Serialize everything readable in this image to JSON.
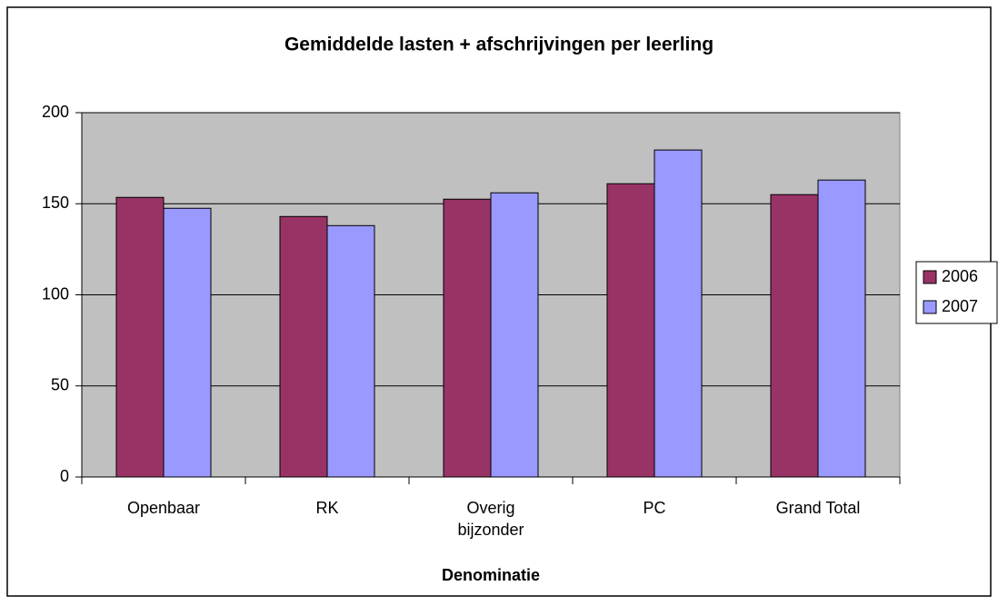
{
  "chart_data": {
    "type": "bar",
    "title": "Gemiddelde lasten + afschrijvingen per leerling",
    "x_label": "Denominatie",
    "categories": [
      "Openbaar",
      "RK",
      "Overig bijzonder",
      "PC",
      "Grand Total"
    ],
    "series": [
      {
        "name": "2006",
        "color": "#993366",
        "values": [
          153.5,
          143,
          152.5,
          161,
          155
        ]
      },
      {
        "name": "2007",
        "color": "#9999ff",
        "values": [
          147.5,
          138,
          156,
          179.5,
          163
        ]
      }
    ],
    "ylim": [
      0,
      200
    ],
    "yticks": [
      0,
      50,
      100,
      150,
      200
    ],
    "grid": true,
    "legend": "right"
  }
}
